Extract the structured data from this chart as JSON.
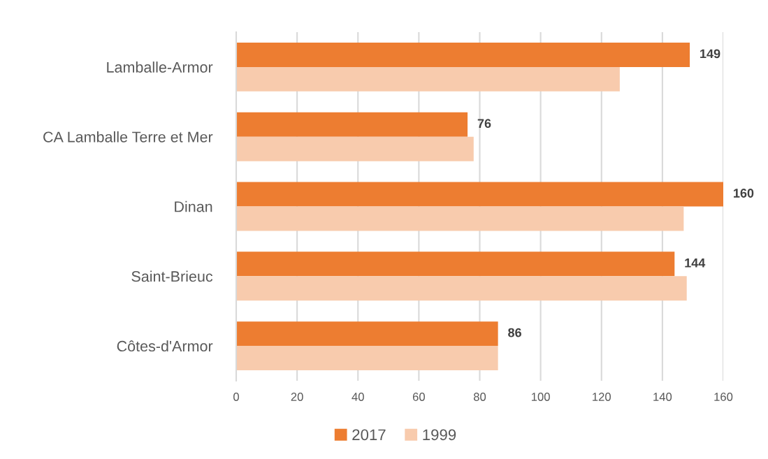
{
  "chart_data": {
    "type": "bar",
    "orientation": "horizontal",
    "categories": [
      "Lamballe-Armor",
      "CA Lamballe Terre et Mer",
      "Dinan",
      "Saint-Brieuc",
      "Côtes-d'Armor"
    ],
    "series": [
      {
        "name": "2017",
        "color": "#ed7d31",
        "values": [
          149,
          76,
          160,
          144,
          86
        ],
        "value_labels": [
          "149",
          "76",
          "160",
          "144",
          "86"
        ]
      },
      {
        "name": "1999",
        "color": "#f8cbad",
        "values": [
          126,
          78,
          147,
          148,
          86
        ]
      }
    ],
    "xlim": [
      0,
      160
    ],
    "xticks": [
      0,
      20,
      40,
      60,
      80,
      100,
      120,
      140,
      160
    ],
    "grid": "x",
    "legend": "bottom"
  }
}
